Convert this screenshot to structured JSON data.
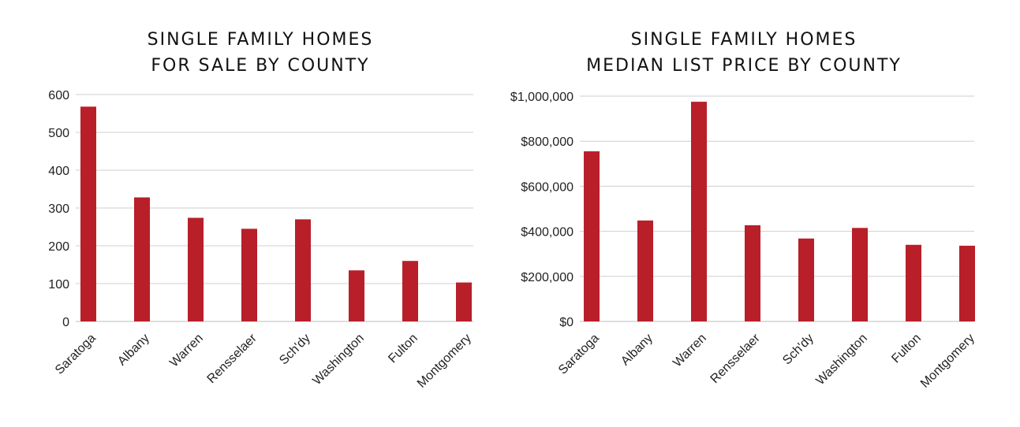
{
  "colors": {
    "bar": "#b81f29",
    "grid": "#cfcfcf",
    "text": "#111111"
  },
  "chart_data": [
    {
      "type": "bar",
      "title_lines": [
        "SINGLE FAMILY HOMES",
        "FOR SALE BY COUNTY"
      ],
      "categories": [
        "Saratoga",
        "Albany",
        "Warren",
        "Rensselaer",
        "Sch'dy",
        "Washington",
        "Fulton",
        "Montgomery"
      ],
      "values": [
        568,
        328,
        274,
        245,
        270,
        135,
        160,
        103
      ],
      "ylim": [
        0,
        600
      ],
      "yticks": [
        0,
        100,
        200,
        300,
        400,
        500,
        600
      ],
      "ytick_labels": [
        "0",
        "100",
        "200",
        "300",
        "400",
        "500",
        "600"
      ],
      "grid": true
    },
    {
      "type": "bar",
      "title_lines": [
        "SINGLE FAMILY HOMES",
        "MEDIAN LIST PRICE BY COUNTY"
      ],
      "categories": [
        "Saratoga",
        "Albany",
        "Warren",
        "Rensselaer",
        "Sch'dy",
        "Washington",
        "Fulton",
        "Montgomery"
      ],
      "values": [
        755000,
        448000,
        975000,
        427000,
        368000,
        415000,
        340000,
        336000
      ],
      "ylim": [
        0,
        1000000
      ],
      "yticks": [
        0,
        200000,
        400000,
        600000,
        800000,
        1000000
      ],
      "ytick_labels": [
        "$0",
        "$200,000",
        "$400,000",
        "$600,000",
        "$800,000",
        "$1,000,000"
      ],
      "grid": true
    }
  ]
}
